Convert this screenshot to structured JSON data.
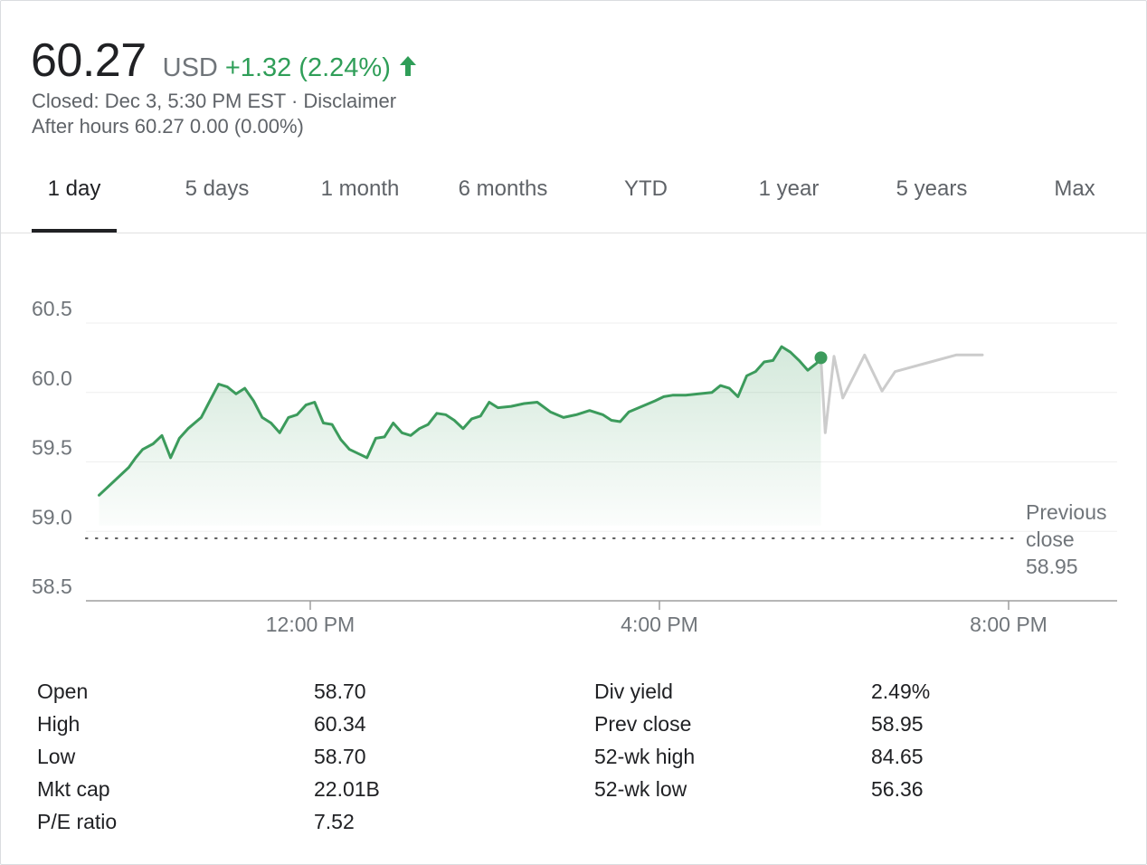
{
  "quote": {
    "price": "60.27",
    "currency": "USD",
    "change": "+1.32 (2.24%)",
    "closed": "Closed: Dec 3, 5:30 PM EST · Disclaimer",
    "after_hours": "After hours 60.27 0.00 (0.00%)",
    "up_color": "#2f9e58",
    "arrow_icon": "arrow-up-icon"
  },
  "tabs": [
    {
      "label": "1 day",
      "active": true
    },
    {
      "label": "5 days"
    },
    {
      "label": "1 month"
    },
    {
      "label": "6 months"
    },
    {
      "label": "YTD"
    },
    {
      "label": "1 year"
    },
    {
      "label": "5 years"
    },
    {
      "label": "Max"
    }
  ],
  "chart_data": {
    "type": "line",
    "y_ticks": [
      "60.5",
      "60.0",
      "59.5",
      "59.0",
      "58.5"
    ],
    "ylim": [
      58.5,
      60.5
    ],
    "x_ticks": [
      {
        "label": "12:00 PM",
        "hour": 12
      },
      {
        "label": "4:00 PM",
        "hour": 16
      },
      {
        "label": "8:00 PM",
        "hour": 20
      }
    ],
    "xlim": [
      9.5,
      21.25
    ],
    "grid": true,
    "previous_close": {
      "label_lines": [
        "Previous",
        "close",
        "58.95"
      ],
      "value": 58.95
    },
    "series": [
      {
        "line_color": "#3c9b5c",
        "session": "regular",
        "points": [
          [
            9.58,
            59.26
          ],
          [
            9.75,
            59.36
          ],
          [
            9.92,
            59.46
          ],
          [
            10.0,
            59.53
          ],
          [
            10.08,
            59.59
          ],
          [
            10.2,
            59.63
          ],
          [
            10.3,
            59.69
          ],
          [
            10.4,
            59.53
          ],
          [
            10.5,
            59.67
          ],
          [
            10.6,
            59.74
          ],
          [
            10.75,
            59.82
          ],
          [
            10.85,
            59.94
          ],
          [
            10.95,
            60.06
          ],
          [
            11.05,
            60.04
          ],
          [
            11.15,
            59.99
          ],
          [
            11.25,
            60.03
          ],
          [
            11.35,
            59.94
          ],
          [
            11.45,
            59.82
          ],
          [
            11.55,
            59.78
          ],
          [
            11.65,
            59.71
          ],
          [
            11.75,
            59.82
          ],
          [
            11.85,
            59.84
          ],
          [
            11.95,
            59.91
          ],
          [
            12.05,
            59.93
          ],
          [
            12.15,
            59.78
          ],
          [
            12.25,
            59.77
          ],
          [
            12.35,
            59.66
          ],
          [
            12.45,
            59.59
          ],
          [
            12.55,
            59.56
          ],
          [
            12.65,
            59.53
          ],
          [
            12.75,
            59.67
          ],
          [
            12.85,
            59.68
          ],
          [
            12.95,
            59.78
          ],
          [
            13.05,
            59.71
          ],
          [
            13.15,
            59.69
          ],
          [
            13.25,
            59.74
          ],
          [
            13.35,
            59.77
          ],
          [
            13.45,
            59.85
          ],
          [
            13.55,
            59.84
          ],
          [
            13.65,
            59.8
          ],
          [
            13.75,
            59.74
          ],
          [
            13.85,
            59.81
          ],
          [
            13.95,
            59.83
          ],
          [
            14.05,
            59.93
          ],
          [
            14.15,
            59.89
          ],
          [
            14.3,
            59.9
          ],
          [
            14.45,
            59.92
          ],
          [
            14.6,
            59.93
          ],
          [
            14.75,
            59.86
          ],
          [
            14.9,
            59.82
          ],
          [
            15.05,
            59.84
          ],
          [
            15.2,
            59.87
          ],
          [
            15.35,
            59.84
          ],
          [
            15.45,
            59.8
          ],
          [
            15.55,
            59.79
          ],
          [
            15.65,
            59.86
          ],
          [
            15.8,
            59.9
          ],
          [
            15.95,
            59.94
          ],
          [
            16.05,
            59.97
          ],
          [
            16.15,
            59.98
          ],
          [
            16.3,
            59.98
          ],
          [
            16.45,
            59.99
          ],
          [
            16.6,
            60.0
          ],
          [
            16.7,
            60.05
          ],
          [
            16.8,
            60.03
          ],
          [
            16.9,
            59.97
          ],
          [
            17.0,
            60.12
          ],
          [
            17.1,
            60.15
          ],
          [
            17.2,
            60.22
          ],
          [
            17.3,
            60.23
          ],
          [
            17.4,
            60.33
          ],
          [
            17.5,
            60.29
          ],
          [
            17.6,
            60.23
          ],
          [
            17.7,
            60.16
          ],
          [
            17.8,
            60.21
          ],
          [
            17.85,
            60.25
          ]
        ]
      },
      {
        "line_color": "#cccccc",
        "session": "after-hours",
        "points": [
          [
            17.85,
            60.25
          ],
          [
            17.9,
            59.71
          ],
          [
            18.0,
            60.26
          ],
          [
            18.1,
            59.96
          ],
          [
            18.35,
            60.27
          ],
          [
            18.55,
            60.01
          ],
          [
            18.7,
            60.15
          ],
          [
            19.05,
            60.21
          ],
          [
            19.4,
            60.27
          ],
          [
            19.7,
            60.27
          ]
        ]
      }
    ]
  },
  "stats": {
    "left": [
      {
        "label": "Open",
        "value": "58.70"
      },
      {
        "label": "High",
        "value": "60.34"
      },
      {
        "label": "Low",
        "value": "58.70"
      },
      {
        "label": "Mkt cap",
        "value": "22.01B"
      },
      {
        "label": "P/E ratio",
        "value": "7.52"
      }
    ],
    "right": [
      {
        "label": "Div yield",
        "value": "2.49%"
      },
      {
        "label": "Prev close",
        "value": "58.95"
      },
      {
        "label": "52-wk high",
        "value": "84.65"
      },
      {
        "label": "52-wk low",
        "value": "56.36"
      }
    ]
  }
}
